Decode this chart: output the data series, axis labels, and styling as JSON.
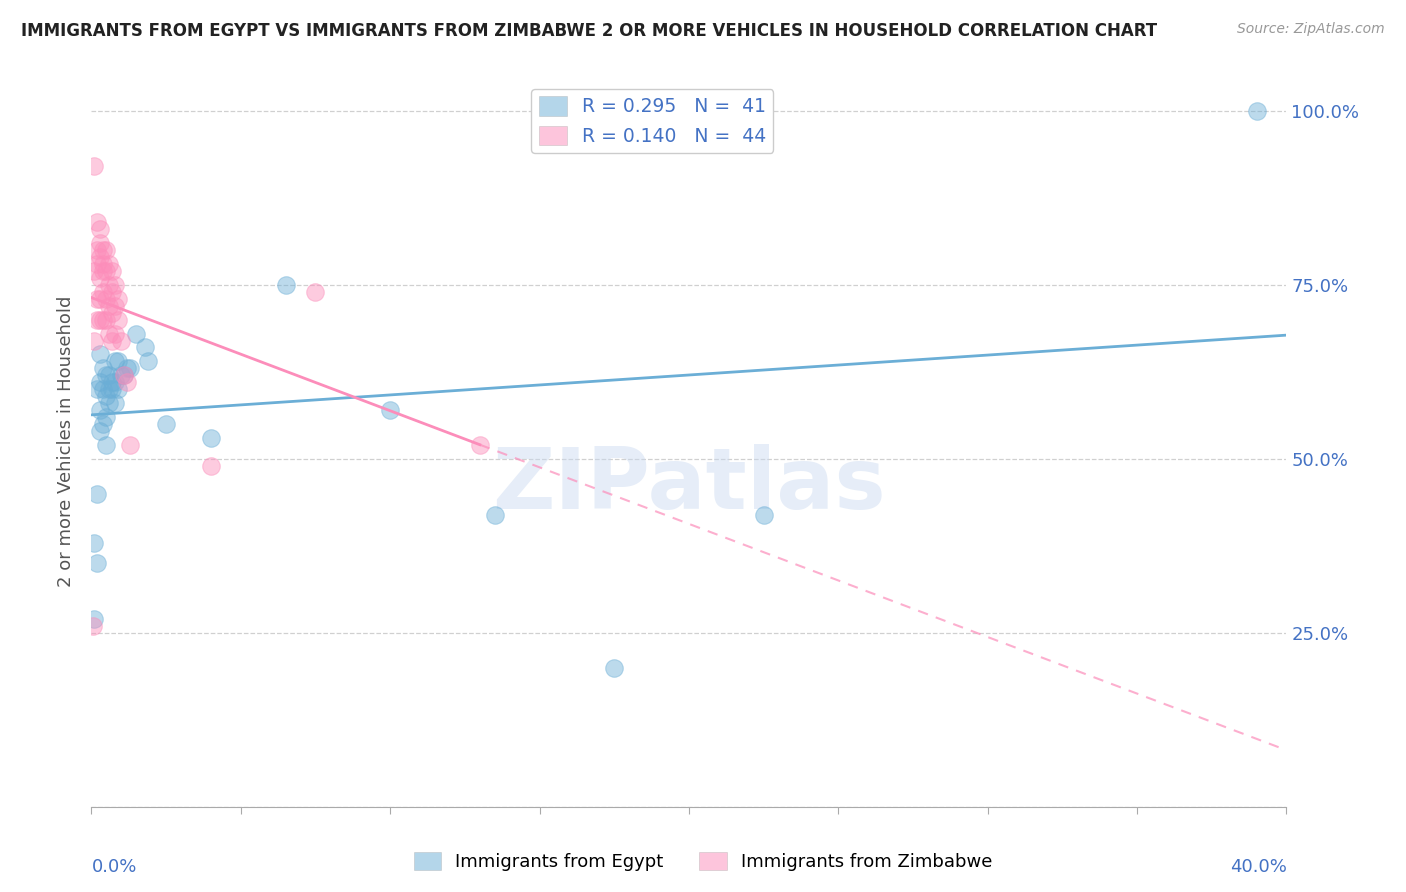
{
  "title": "IMMIGRANTS FROM EGYPT VS IMMIGRANTS FROM ZIMBABWE 2 OR MORE VEHICLES IN HOUSEHOLD CORRELATION CHART",
  "source": "Source: ZipAtlas.com",
  "ylabel": "2 or more Vehicles in Household",
  "watermark": "ZIPatlas",
  "legend_egypt_R": "R = 0.295",
  "legend_egypt_N": "N =  41",
  "legend_zimb_R": "R = 0.140",
  "legend_zimb_N": "N =  44",
  "egypt_color": "#6baed6",
  "zimb_color": "#fc8dba",
  "xlim": [
    0.0,
    0.4
  ],
  "ylim": [
    0.0,
    1.05
  ],
  "egypt_x": [
    0.001,
    0.001,
    0.002,
    0.002,
    0.002,
    0.003,
    0.003,
    0.003,
    0.003,
    0.004,
    0.004,
    0.004,
    0.005,
    0.005,
    0.005,
    0.005,
    0.006,
    0.006,
    0.006,
    0.007,
    0.007,
    0.008,
    0.008,
    0.008,
    0.009,
    0.009,
    0.01,
    0.011,
    0.012,
    0.013,
    0.015,
    0.018,
    0.019,
    0.025,
    0.04,
    0.065,
    0.1,
    0.135,
    0.175,
    0.225,
    0.39
  ],
  "egypt_y": [
    0.27,
    0.38,
    0.6,
    0.35,
    0.45,
    0.65,
    0.61,
    0.57,
    0.54,
    0.63,
    0.6,
    0.55,
    0.62,
    0.59,
    0.56,
    0.52,
    0.62,
    0.6,
    0.58,
    0.61,
    0.6,
    0.64,
    0.61,
    0.58,
    0.64,
    0.6,
    0.62,
    0.62,
    0.63,
    0.63,
    0.68,
    0.66,
    0.64,
    0.55,
    0.53,
    0.75,
    0.57,
    0.42,
    0.2,
    0.42,
    1.0
  ],
  "zimb_x": [
    0.0005,
    0.001,
    0.001,
    0.001,
    0.002,
    0.002,
    0.002,
    0.002,
    0.002,
    0.003,
    0.003,
    0.003,
    0.003,
    0.003,
    0.003,
    0.004,
    0.004,
    0.004,
    0.004,
    0.004,
    0.005,
    0.005,
    0.005,
    0.005,
    0.006,
    0.006,
    0.006,
    0.006,
    0.007,
    0.007,
    0.007,
    0.007,
    0.008,
    0.008,
    0.008,
    0.009,
    0.009,
    0.01,
    0.011,
    0.012,
    0.013,
    0.04,
    0.075,
    0.13
  ],
  "zimb_y": [
    0.26,
    0.92,
    0.77,
    0.67,
    0.84,
    0.8,
    0.78,
    0.73,
    0.7,
    0.83,
    0.81,
    0.79,
    0.76,
    0.73,
    0.7,
    0.8,
    0.78,
    0.77,
    0.74,
    0.7,
    0.8,
    0.77,
    0.73,
    0.7,
    0.78,
    0.75,
    0.72,
    0.68,
    0.77,
    0.74,
    0.71,
    0.67,
    0.75,
    0.72,
    0.68,
    0.73,
    0.7,
    0.67,
    0.62,
    0.61,
    0.52,
    0.49,
    0.74,
    0.52
  ],
  "xticks": [
    0.0,
    0.05,
    0.1,
    0.15,
    0.2,
    0.25,
    0.3,
    0.35,
    0.4
  ],
  "yticks": [
    0.0,
    0.25,
    0.5,
    0.75,
    1.0
  ],
  "ytick_labels": [
    "",
    "25.0%",
    "50.0%",
    "75.0%",
    "100.0%"
  ],
  "grid_color": "#d0d0d0",
  "bg_color": "#ffffff",
  "title_fontsize": 12,
  "axis_label_color": "#4472C4",
  "axis_label_fontsize": 13
}
